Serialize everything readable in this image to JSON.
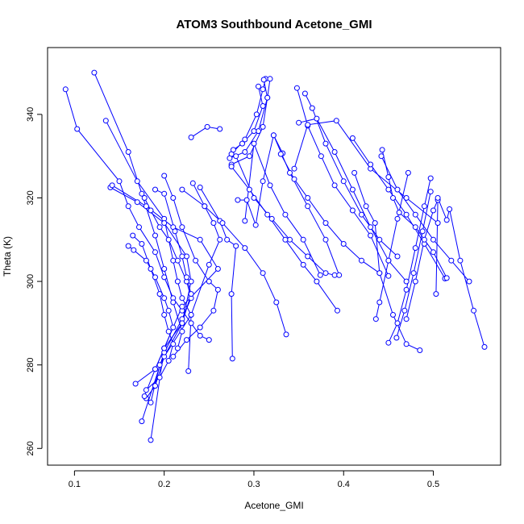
{
  "chart_data": {
    "type": "scatter",
    "title": "ATOM3 Southbound Acetone_GMI",
    "xlabel": "Acetone_GMI",
    "ylabel": "Theta (K)",
    "xlim": [
      0.07,
      0.575
    ],
    "ylim": [
      256,
      356
    ],
    "xticks": [
      0.1,
      0.2,
      0.3,
      0.4,
      0.5
    ],
    "xtick_labels": [
      "0.1",
      "0.2",
      "0.3",
      "0.4",
      "0.5"
    ],
    "yticks": [
      260,
      280,
      300,
      320,
      340
    ],
    "ytick_labels": [
      "260",
      "280",
      "300",
      "320",
      "340"
    ],
    "grid": false,
    "legend": "none",
    "style": "connected points with open circle markers",
    "color": "#0000ff",
    "profiles": [
      {
        "x": [
          0.09,
          0.103,
          0.15,
          0.16,
          0.172,
          0.19,
          0.2,
          0.21,
          0.22,
          0.23,
          0.24,
          0.25
        ],
        "y": [
          346,
          336.5,
          324,
          318,
          313,
          307,
          301,
          296,
          293,
          290,
          287,
          286
        ]
      },
      {
        "x": [
          0.122,
          0.16,
          0.175,
          0.19,
          0.2,
          0.21,
          0.22,
          0.215
        ],
        "y": [
          350,
          331,
          321,
          311,
          303,
          295,
          288,
          284
        ]
      },
      {
        "x": [
          0.135,
          0.17,
          0.2,
          0.21,
          0.215,
          0.22,
          0.23,
          0.2,
          0.19,
          0.18
        ],
        "y": [
          338.5,
          324,
          315,
          305,
          300,
          296,
          292,
          282,
          275,
          272
        ]
      },
      {
        "x": [
          0.14,
          0.17,
          0.2,
          0.225,
          0.23,
          0.22,
          0.195,
          0.185
        ],
        "y": [
          322.5,
          319,
          314,
          306,
          300,
          290,
          280,
          271
        ]
      },
      {
        "x": [
          0.142,
          0.18,
          0.21,
          0.24,
          0.26,
          0.22,
          0.2,
          0.185
        ],
        "y": [
          323,
          318,
          313,
          310,
          303,
          294,
          284,
          262
        ]
      },
      {
        "x": [
          0.16,
          0.166,
          0.18,
          0.19,
          0.2,
          0.205,
          0.21,
          0.2,
          0.19,
          0.178
        ],
        "y": [
          308.5,
          307.5,
          305,
          301,
          296,
          293,
          289,
          284,
          279,
          272.5
        ]
      },
      {
        "x": [
          0.165,
          0.175,
          0.185,
          0.195,
          0.2,
          0.205,
          0.21,
          0.205,
          0.195,
          0.18
        ],
        "y": [
          311,
          309,
          303,
          297,
          292,
          288,
          285,
          281,
          277,
          274
        ]
      },
      {
        "x": [
          0.178,
          0.185,
          0.195,
          0.205,
          0.215,
          0.225,
          0.23,
          0.22,
          0.2,
          0.175
        ],
        "y": [
          320,
          317,
          313,
          310,
          305,
          300,
          296,
          291,
          283,
          266.5
        ]
      },
      {
        "x": [
          0.19,
          0.2,
          0.212,
          0.22,
          0.225,
          0.23,
          0.22,
          0.2,
          0.19,
          0.168
        ],
        "y": [
          322,
          321,
          312,
          306,
          301,
          297,
          290,
          284,
          279,
          275.5
        ]
      },
      {
        "x": [
          0.2,
          0.21,
          0.22,
          0.235,
          0.25,
          0.26,
          0.255,
          0.24,
          0.225,
          0.21
        ],
        "y": [
          325.3,
          320,
          313,
          305,
          300,
          298,
          293,
          289,
          286,
          282
        ]
      },
      {
        "x": [
          0.23,
          0.248,
          0.262
        ],
        "y": [
          334.5,
          337,
          336.5
        ]
      },
      {
        "x": [
          0.232,
          0.245,
          0.255,
          0.262,
          0.25,
          0.23,
          0.227
        ],
        "y": [
          323.5,
          318,
          314,
          310,
          304,
          292,
          278.5
        ]
      },
      {
        "x": [
          0.24,
          0.262,
          0.27,
          0.28,
          0.275,
          0.276
        ],
        "y": [
          322.5,
          314.5,
          310,
          308.5,
          297,
          281.5
        ]
      },
      {
        "x": [
          0.22,
          0.245,
          0.265,
          0.29,
          0.31,
          0.325,
          0.336
        ],
        "y": [
          322,
          318,
          314,
          308,
          302,
          295,
          287.3
        ]
      },
      {
        "x": [
          0.275,
          0.29,
          0.303,
          0.31,
          0.313
        ],
        "y": [
          330.5,
          334,
          340,
          346,
          348.5
        ]
      },
      {
        "x": [
          0.273,
          0.29,
          0.305,
          0.315,
          0.318
        ],
        "y": [
          329.5,
          331,
          336,
          344,
          348.5
        ]
      },
      {
        "x": [
          0.275,
          0.295,
          0.31,
          0.315,
          0.311
        ],
        "y": [
          328,
          330,
          337,
          344,
          348.3
        ]
      },
      {
        "x": [
          0.277,
          0.287,
          0.3,
          0.31,
          0.305
        ],
        "y": [
          331.5,
          333,
          336,
          342,
          346.7
        ]
      },
      {
        "x": [
          0.28,
          0.3,
          0.32,
          0.34,
          0.36,
          0.38,
          0.39
        ],
        "y": [
          330,
          320,
          315,
          310,
          306,
          302,
          301.5
        ]
      },
      {
        "x": [
          0.275,
          0.295,
          0.315,
          0.335,
          0.355,
          0.37,
          0.393
        ],
        "y": [
          327.5,
          322,
          316,
          310,
          304,
          300,
          293
        ]
      },
      {
        "x": [
          0.282,
          0.292,
          0.302,
          0.31,
          0.322,
          0.332
        ],
        "y": [
          319.5,
          319.5,
          313.5,
          324,
          335,
          330.7
        ]
      },
      {
        "x": [
          0.29,
          0.3,
          0.318,
          0.335,
          0.355,
          0.374
        ],
        "y": [
          314.5,
          333,
          323,
          316,
          310,
          301.5
        ]
      },
      {
        "x": [
          0.33,
          0.345,
          0.36,
          0.38,
          0.4,
          0.42,
          0.44
        ],
        "y": [
          330.5,
          324.5,
          320,
          314,
          309,
          305,
          302
        ]
      },
      {
        "x": [
          0.322,
          0.34,
          0.36,
          0.38,
          0.395
        ],
        "y": [
          335,
          326,
          318,
          310,
          301.5
        ]
      },
      {
        "x": [
          0.348,
          0.36,
          0.375,
          0.39,
          0.41,
          0.43,
          0.45
        ],
        "y": [
          346.3,
          337.3,
          330,
          323,
          317,
          311,
          301.3
        ]
      },
      {
        "x": [
          0.357,
          0.365,
          0.38,
          0.4,
          0.42,
          0.44,
          0.46
        ],
        "y": [
          345,
          341.5,
          333,
          324,
          316,
          310,
          306
        ]
      },
      {
        "x": [
          0.35,
          0.37,
          0.39,
          0.41,
          0.43,
          0.45,
          0.47
        ],
        "y": [
          338,
          339,
          331,
          322,
          313,
          305,
          300
        ]
      },
      {
        "x": [
          0.345,
          0.36,
          0.392,
          0.43,
          0.47,
          0.505
        ],
        "y": [
          327,
          337.5,
          338.5,
          327,
          320,
          314
        ]
      },
      {
        "x": [
          0.41,
          0.43,
          0.45,
          0.47,
          0.49,
          0.513
        ],
        "y": [
          334.3,
          328,
          322,
          316,
          309,
          300.7
        ]
      },
      {
        "x": [
          0.412,
          0.425,
          0.435,
          0.44,
          0.455,
          0.47,
          0.485
        ],
        "y": [
          326,
          318,
          314,
          302,
          292,
          285,
          283.5
        ]
      },
      {
        "x": [
          0.436,
          0.44,
          0.45,
          0.46,
          0.472
        ],
        "y": [
          291,
          295,
          305,
          315,
          326
        ]
      },
      {
        "x": [
          0.443,
          0.45,
          0.455,
          0.462,
          0.48,
          0.5,
          0.515
        ],
        "y": [
          331.5,
          325,
          320,
          316.5,
          313,
          307,
          300.8
        ]
      },
      {
        "x": [
          0.442,
          0.46,
          0.48,
          0.5,
          0.52,
          0.54
        ],
        "y": [
          330,
          322,
          316,
          310,
          305,
          300
        ]
      },
      {
        "x": [
          0.45,
          0.46,
          0.47,
          0.48,
          0.49,
          0.497
        ],
        "y": [
          285.3,
          290,
          298,
          308,
          318,
          324.7
        ]
      },
      {
        "x": [
          0.459,
          0.468,
          0.478,
          0.488,
          0.497
        ],
        "y": [
          286.5,
          293,
          302,
          312,
          321.5
        ]
      },
      {
        "x": [
          0.47,
          0.48,
          0.49,
          0.5,
          0.505,
          0.503
        ],
        "y": [
          291,
          300,
          310,
          317,
          319.5,
          297
        ]
      },
      {
        "x": [
          0.505,
          0.515,
          0.518,
          0.53,
          0.545,
          0.557
        ],
        "y": [
          320,
          314.7,
          317.3,
          305,
          293,
          284.3
        ]
      }
    ]
  }
}
